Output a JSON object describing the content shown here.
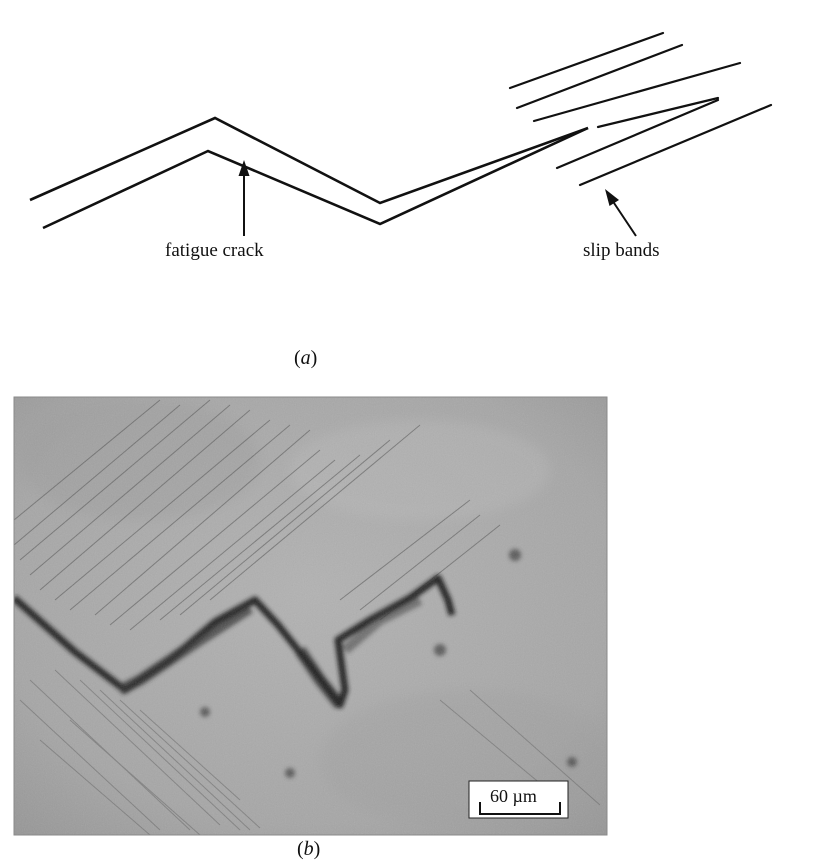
{
  "panel_a": {
    "caption_letter": "a",
    "crack_label": "fatigue crack",
    "slip_label": "slip bands"
  },
  "panel_b": {
    "caption_letter": "b",
    "scale_bar": "60 µm"
  },
  "colors": {
    "line": "#111111",
    "micrograph_base": "#a7a7a7"
  }
}
